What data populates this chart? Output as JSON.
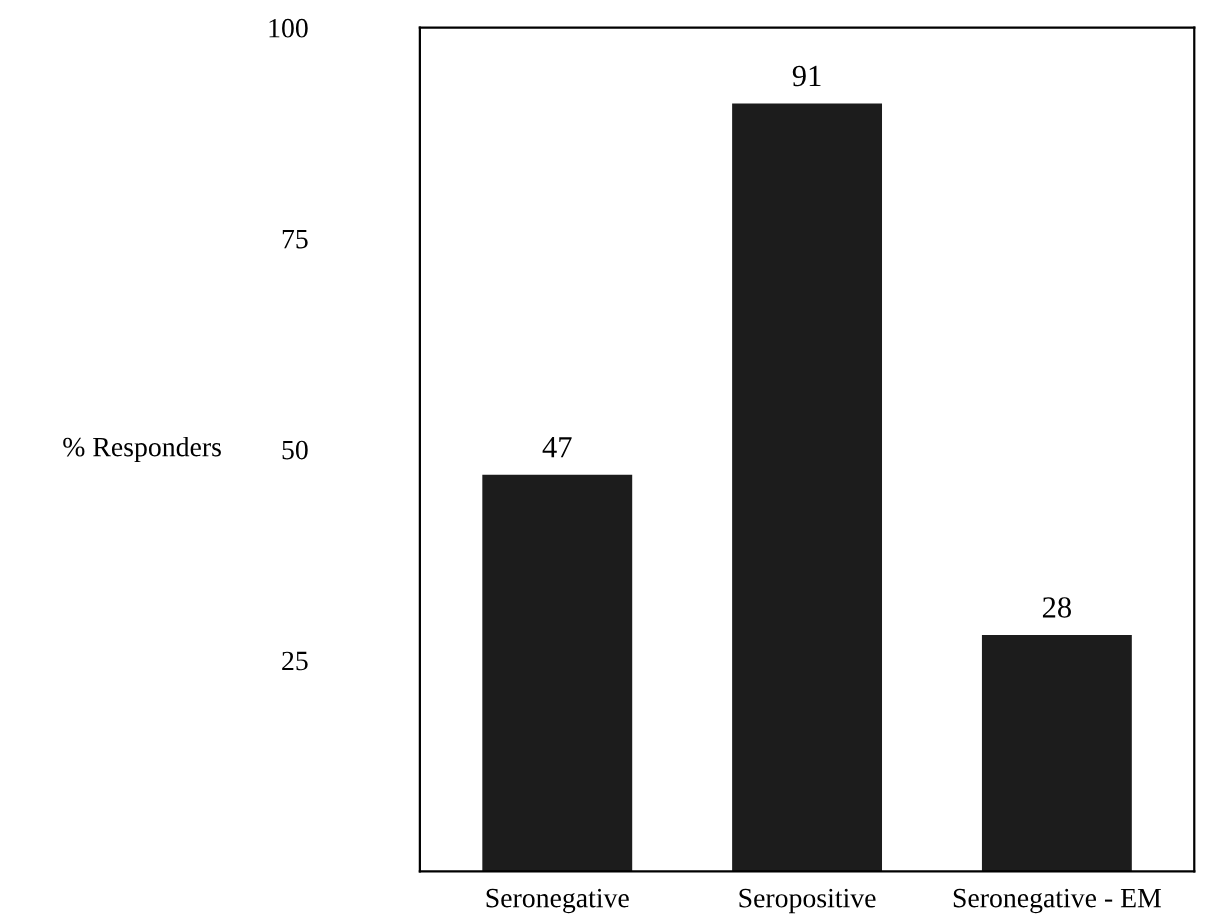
{
  "chart_data": {
    "type": "bar",
    "ylabel": "% Responders",
    "categories": [
      "Seronegative",
      "Seropositive",
      "Seronegative - EM"
    ],
    "values": [
      47,
      91,
      28
    ],
    "color": "#1c1c1c",
    "ylim": [
      0,
      100
    ],
    "yticks": [
      25,
      50,
      75,
      100
    ],
    "grid": false,
    "data_labels": true
  }
}
